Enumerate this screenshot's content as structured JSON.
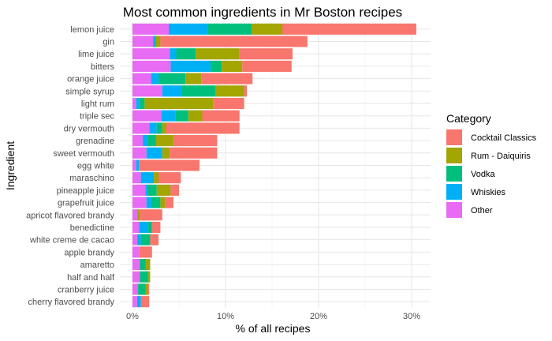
{
  "chart_data": {
    "type": "bar",
    "stacked": true,
    "orientation": "horizontal",
    "title": "Most common ingredients in Mr Boston recipes",
    "xlabel": "% of all recipes",
    "ylabel": "Ingredient",
    "xlim": [
      0,
      31.5
    ],
    "xticks": [
      0,
      10,
      20,
      30
    ],
    "xtick_labels": [
      "0%",
      "10%",
      "20%",
      "30%"
    ],
    "grid": true,
    "legend": {
      "title": "Category",
      "position": "right"
    },
    "categories": [
      "lemon juice",
      "gin",
      "lime juice",
      "bitters",
      "orange juice",
      "simple syrup",
      "light rum",
      "triple sec",
      "dry vermouth",
      "grenadine",
      "sweet vermouth",
      "egg white",
      "maraschino",
      "pineapple juice",
      "grapefruit juice",
      "apricot flavored brandy",
      "benedictine",
      "white creme de cacao",
      "apple brandy",
      "amaretto",
      "half and half",
      "cranberry juice",
      "cherry flavored brandy"
    ],
    "series": [
      {
        "name": "Other",
        "color": "#E76BF3",
        "values": [
          3.9,
          2.2,
          4.0,
          4.1,
          2.0,
          3.2,
          0.4,
          3.1,
          1.8,
          1.1,
          1.5,
          0.4,
          0.9,
          1.4,
          1.5,
          0.5,
          0.7,
          0.5,
          0.7,
          0.8,
          0.8,
          0.6,
          0.5
        ]
      },
      {
        "name": "Whiskies",
        "color": "#00B0F6",
        "values": [
          4.2,
          0.3,
          0.7,
          4.3,
          0.8,
          2.1,
          0.3,
          1.5,
          0.8,
          0.5,
          1.7,
          0.3,
          1.4,
          0.2,
          0.5,
          0.0,
          1.0,
          0.4,
          0.0,
          0.0,
          0.0,
          0.0,
          0.4
        ]
      },
      {
        "name": "Vodka",
        "color": "#00BF7D",
        "values": [
          4.7,
          0.0,
          2.1,
          1.2,
          2.9,
          3.6,
          0.6,
          1.4,
          0.6,
          0.9,
          0.0,
          0.0,
          0.0,
          1.0,
          1.0,
          0.0,
          0.4,
          1.0,
          0.0,
          0.6,
          0.9,
          0.8,
          0.0
        ]
      },
      {
        "name": "Rum - Daiquiris",
        "color": "#A3A500",
        "values": [
          3.3,
          0.5,
          4.7,
          2.2,
          1.7,
          3.1,
          7.4,
          1.5,
          0.4,
          1.9,
          0.8,
          0.0,
          0.5,
          1.5,
          0.5,
          0.3,
          0.0,
          0.0,
          0.0,
          0.5,
          0.2,
          0.3,
          0.0
        ]
      },
      {
        "name": "Cocktail Classics",
        "color": "#F8766D",
        "values": [
          14.4,
          15.8,
          5.7,
          5.3,
          5.5,
          0.3,
          3.3,
          4.0,
          7.9,
          4.7,
          5.1,
          6.5,
          2.4,
          0.9,
          0.9,
          2.4,
          0.9,
          0.9,
          1.4,
          0.0,
          0.0,
          0.1,
          0.9
        ]
      }
    ],
    "legend_order": [
      "Cocktail Classics",
      "Rum - Daiquiris",
      "Vodka",
      "Whiskies",
      "Other"
    ]
  }
}
